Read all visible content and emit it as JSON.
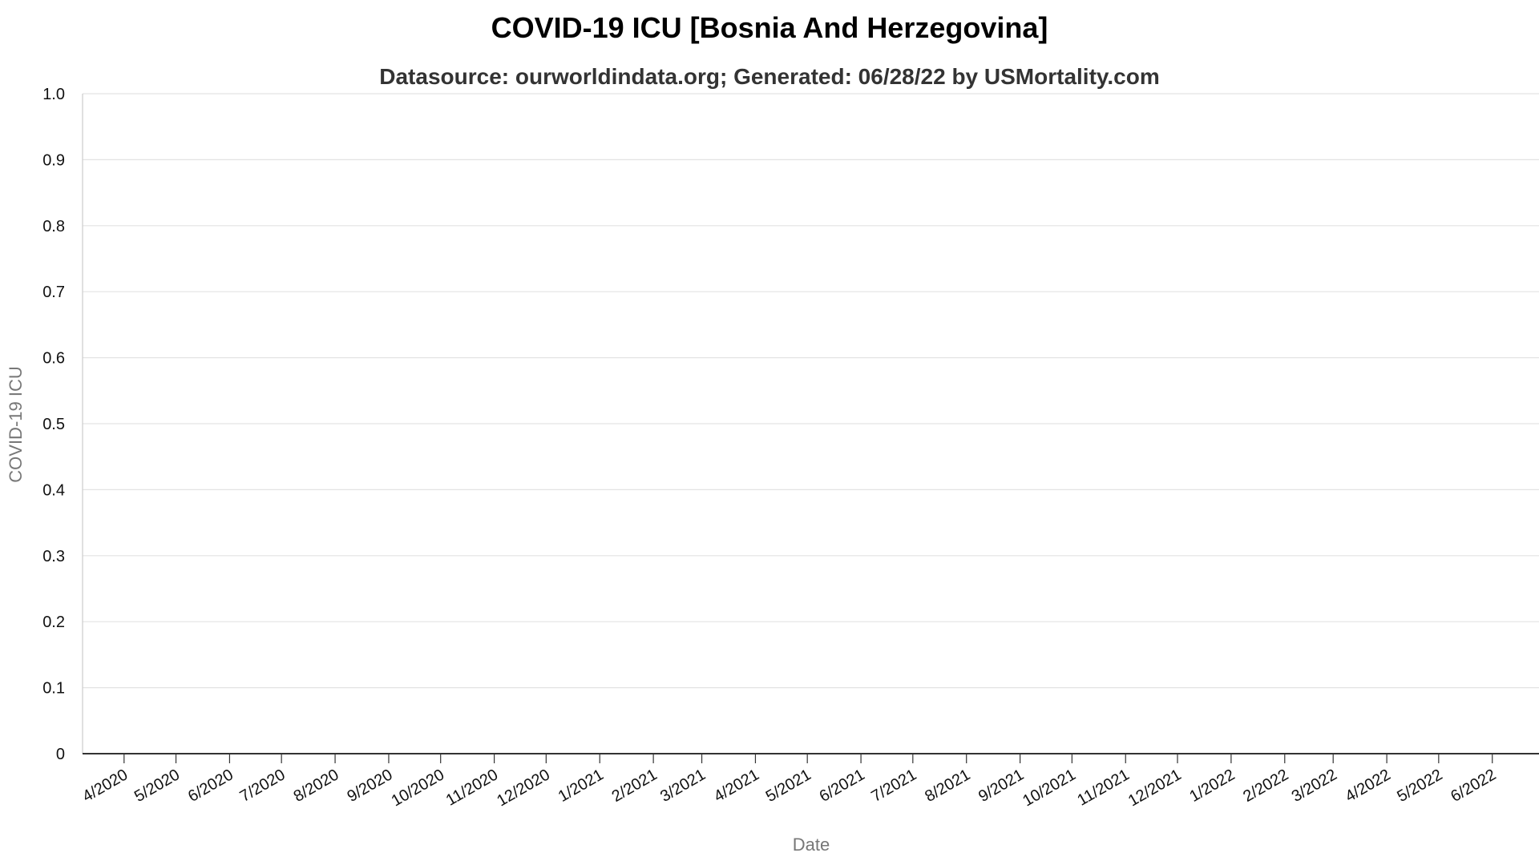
{
  "chart_data": {
    "type": "line",
    "title": "COVID-19 ICU [Bosnia And Herzegovina]",
    "subtitle": "Datasource: ourworldindata.org; Generated: 06/28/22 by USMortality.com",
    "xlabel": "Date",
    "ylabel": "COVID-19 ICU",
    "ylim": [
      0,
      1
    ],
    "y_ticks": [
      "0",
      "0.1",
      "0.2",
      "0.3",
      "0.4",
      "0.5",
      "0.6",
      "0.7",
      "0.8",
      "0.9",
      "1.0"
    ],
    "x_ticks": [
      {
        "date": "2020-04-01",
        "label": "4/2020"
      },
      {
        "date": "2020-05-01",
        "label": "5/2020"
      },
      {
        "date": "2020-06-01",
        "label": "6/2020"
      },
      {
        "date": "2020-07-01",
        "label": "7/2020"
      },
      {
        "date": "2020-08-01",
        "label": "8/2020"
      },
      {
        "date": "2020-09-01",
        "label": "9/2020"
      },
      {
        "date": "2020-10-01",
        "label": "10/2020"
      },
      {
        "date": "2020-11-01",
        "label": "11/2020"
      },
      {
        "date": "2020-12-01",
        "label": "12/2020"
      },
      {
        "date": "2021-01-01",
        "label": "1/2021"
      },
      {
        "date": "2021-02-01",
        "label": "2/2021"
      },
      {
        "date": "2021-03-01",
        "label": "3/2021"
      },
      {
        "date": "2021-04-01",
        "label": "4/2021"
      },
      {
        "date": "2021-05-01",
        "label": "5/2021"
      },
      {
        "date": "2021-06-01",
        "label": "6/2021"
      },
      {
        "date": "2021-07-01",
        "label": "7/2021"
      },
      {
        "date": "2021-08-01",
        "label": "8/2021"
      },
      {
        "date": "2021-09-01",
        "label": "9/2021"
      },
      {
        "date": "2021-10-01",
        "label": "10/2021"
      },
      {
        "date": "2021-11-01",
        "label": "11/2021"
      },
      {
        "date": "2021-12-01",
        "label": "12/2021"
      },
      {
        "date": "2022-01-01",
        "label": "1/2022"
      },
      {
        "date": "2022-02-01",
        "label": "2/2022"
      },
      {
        "date": "2022-03-01",
        "label": "3/2022"
      },
      {
        "date": "2022-04-01",
        "label": "4/2022"
      },
      {
        "date": "2022-05-01",
        "label": "5/2022"
      },
      {
        "date": "2022-06-01",
        "label": "6/2022"
      }
    ],
    "xlim": [
      "2020-03-08",
      "2022-06-28"
    ],
    "grid": true,
    "legend": "none",
    "series": []
  }
}
